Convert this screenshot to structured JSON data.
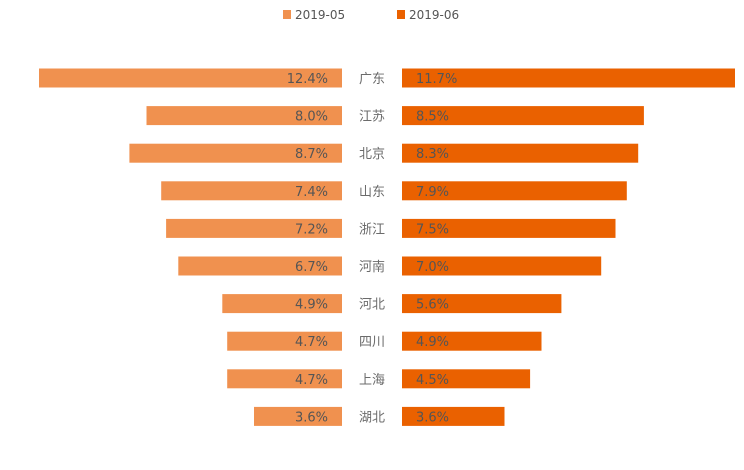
{
  "chart_data": {
    "type": "bar",
    "orientation": "horizontal-butterfly",
    "categories": [
      "广东",
      "江苏",
      "北京",
      "山东",
      "浙江",
      "河南",
      "河北",
      "四川",
      "上海",
      "湖北"
    ],
    "series": [
      {
        "name": "2019-05",
        "side": "left",
        "color": "#F0914F",
        "values": [
          12.4,
          8.0,
          8.7,
          7.4,
          7.2,
          6.7,
          4.9,
          4.7,
          4.7,
          3.6
        ],
        "labels": [
          "12.4%",
          "8.0%",
          "8.7%",
          "7.4%",
          "7.2%",
          "6.7%",
          "4.9%",
          "4.7%",
          "4.7%",
          "3.6%"
        ]
      },
      {
        "name": "2019-06",
        "side": "right",
        "color": "#EA6100",
        "values": [
          11.7,
          8.5,
          8.3,
          7.9,
          7.5,
          7.0,
          5.6,
          4.9,
          4.5,
          3.6
        ],
        "labels": [
          "11.7%",
          "8.5%",
          "8.3%",
          "7.9%",
          "7.5%",
          "7.0%",
          "5.6%",
          "4.9%",
          "4.5%",
          "3.6%"
        ]
      }
    ],
    "legend_position": "top-center",
    "xlim_left": [
      0,
      12.4
    ],
    "xlim_right": [
      0,
      11.7
    ],
    "colors": {
      "category_label": "#6b6b6b",
      "value_label": "#555555",
      "legend_text": "#555555"
    }
  }
}
